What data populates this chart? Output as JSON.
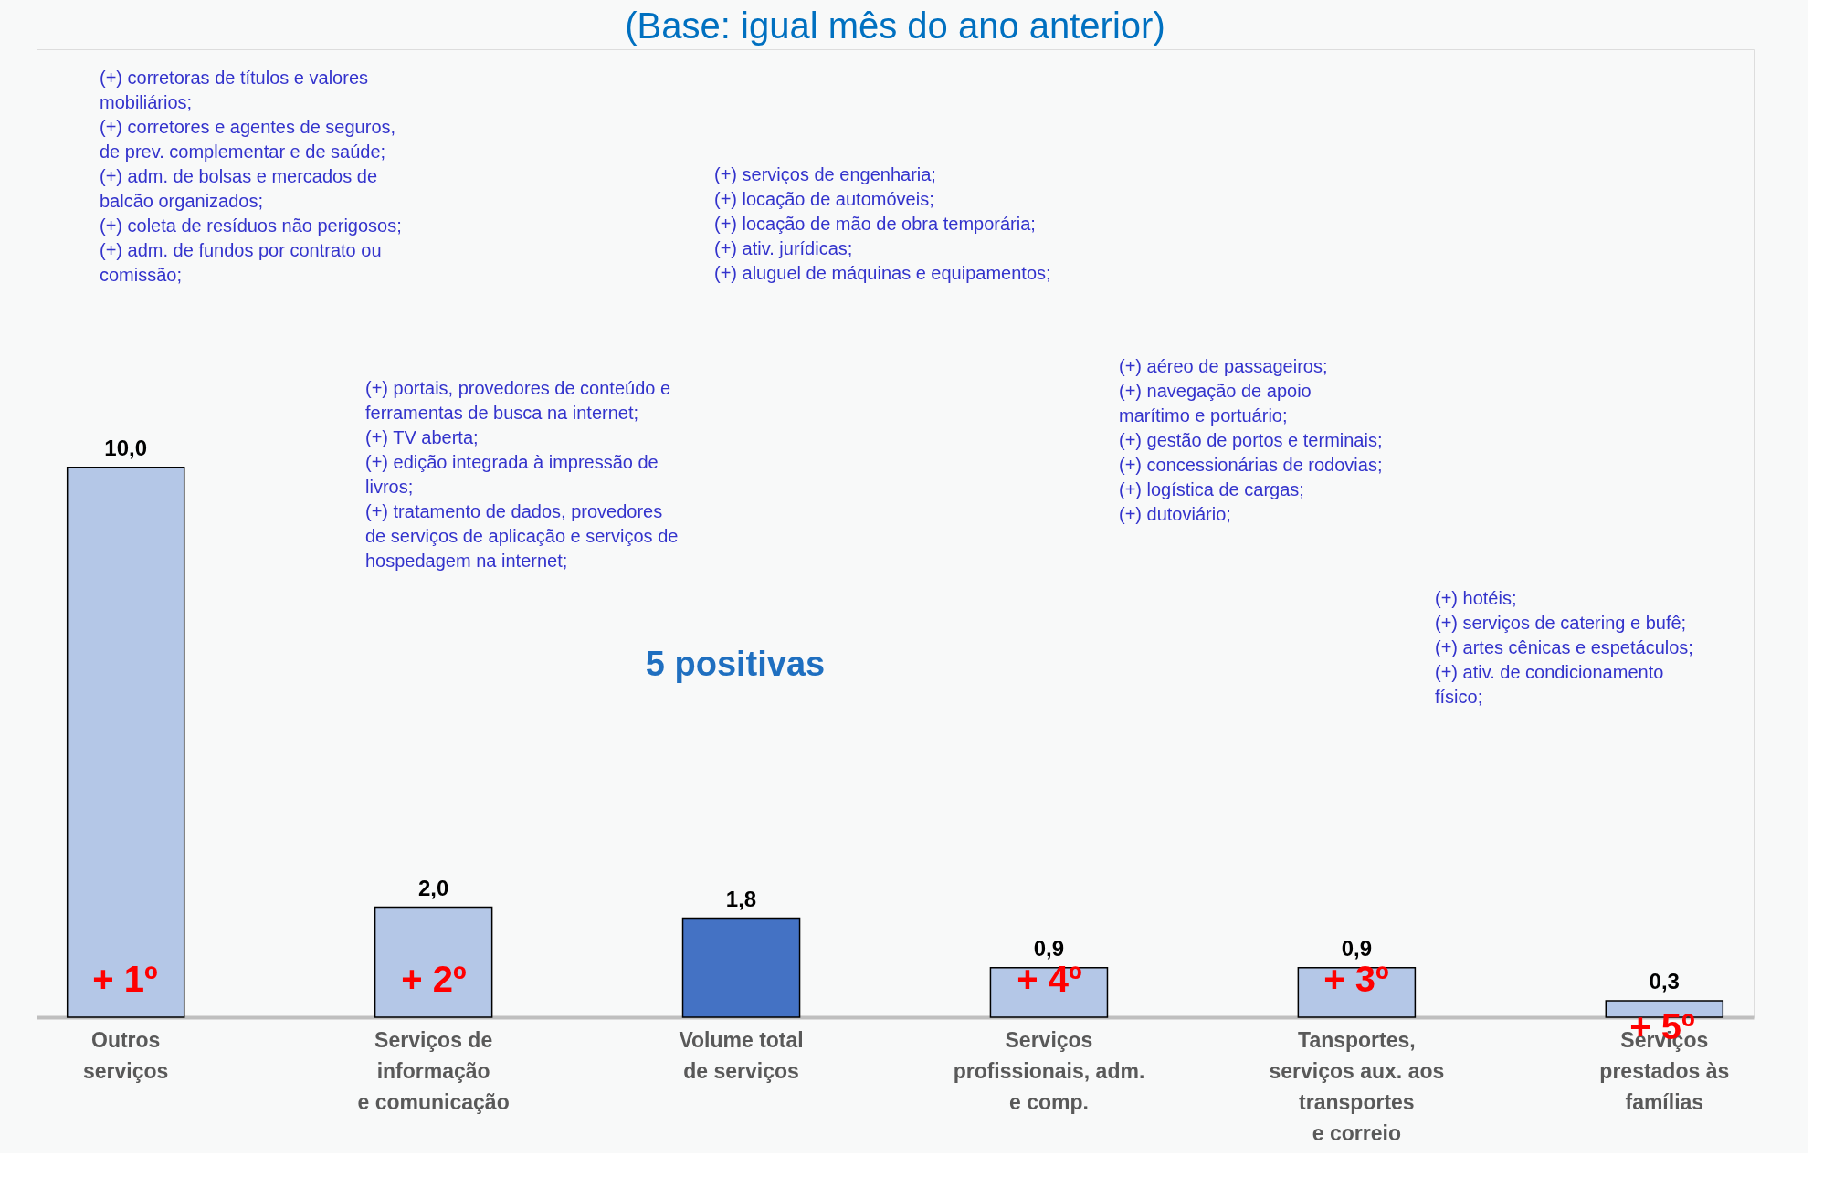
{
  "chart_data": {
    "type": "bar",
    "title": "(Base: igual mês do ano anterior)",
    "categories": [
      "Outros\nserviços",
      "Serviços de\ninformação\ne comunicação",
      "Volume total\nde serviços",
      "Serviços\nprofissionais, adm.\ne comp.",
      "Tansportes,\nserviços aux. aos\ntransportes\ne correio",
      "Serviços\nprestados às\nfamílias"
    ],
    "values": [
      10.0,
      2.0,
      1.8,
      0.9,
      0.9,
      0.3
    ],
    "colors": [
      "#b4c7e7",
      "#b4c7e7",
      "#4472c4",
      "#b4c7e7",
      "#b4c7e7",
      "#b4c7e7"
    ],
    "value_labels": [
      "10,0",
      "2,0",
      "1,8",
      "0,9",
      "0,9",
      "0,3"
    ],
    "annotations": [
      "(+) corretoras de títulos e valores\nmobiliários;\n(+) corretores e agentes de seguros,\nde prev. complementar e de saúde;\n(+) adm. de bolsas e mercados de\nbalcão organizados;\n(+) coleta de resíduos não perigosos;\n(+) adm. de fundos por contrato ou\ncomissão;",
      "(+) portais, provedores de conteúdo e\nferramentas de busca na internet;\n(+) TV aberta;\n(+) edição integrada à impressão de\nlivros;\n(+) tratamento de dados, provedores\nde serviços de aplicação e serviços de\nhospedagem na internet;",
      "(+)  serviços de engenharia;\n(+)  locação de automóveis;\n(+)  locação de mão de obra temporária;\n(+) ativ. jurídicas;\n(+)  aluguel de máquinas e equipamentos;",
      "(+) aéreo de passageiros;\n(+)  navegação  de  apoio\nmarítimo e portuário;\n(+) gestão de portos e terminais;\n(+) concessionárias de rodovias;\n(+) logística de cargas;\n(+) dutoviário;",
      "(+) hotéis;\n(+) serviços de catering e bufê;\n(+) artes cênicas e espetáculos;\n(+)  ativ.  de  condicionamento\nfísico;",
      "5 positivas",
      "+ 1º",
      "+ 2º",
      "+ 4º",
      "+ 3º",
      "+ 5º"
    ]
  }
}
